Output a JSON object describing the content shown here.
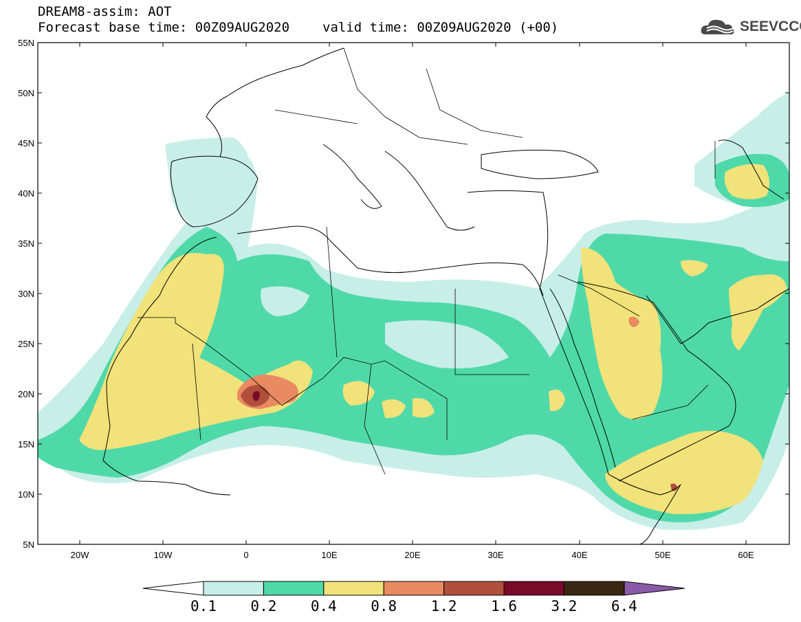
{
  "title": {
    "line1": "DREAM8-assim: AOT",
    "base_time": "Forecast base time: 00Z09AUG2020",
    "valid_time": "valid time: 00Z09AUG2020 (+00)"
  },
  "logo": {
    "text": "SEEVCCC",
    "icon": "cloud-icon"
  },
  "axes": {
    "lat_labels": [
      "55N",
      "50N",
      "45N",
      "40N",
      "35N",
      "30N",
      "25N",
      "20N",
      "15N",
      "10N",
      "5N"
    ],
    "lon_labels": [
      "20W",
      "10W",
      "0",
      "10E",
      "20E",
      "30E",
      "40E",
      "50E",
      "60E"
    ]
  },
  "colorbar": {
    "levels": [
      "0.1",
      "0.2",
      "0.4",
      "0.8",
      "1.2",
      "1.6",
      "3.2",
      "6.4"
    ],
    "colors": [
      "#c8eee8",
      "#4fd9a9",
      "#f2e27a",
      "#e98a62",
      "#b04f3c",
      "#7a0a2a",
      "#3b2612",
      "#8a5aa8"
    ],
    "under_color": "#ffffff"
  },
  "map_colors": {
    "land_border": "#000000",
    "background": "#ffffff"
  }
}
